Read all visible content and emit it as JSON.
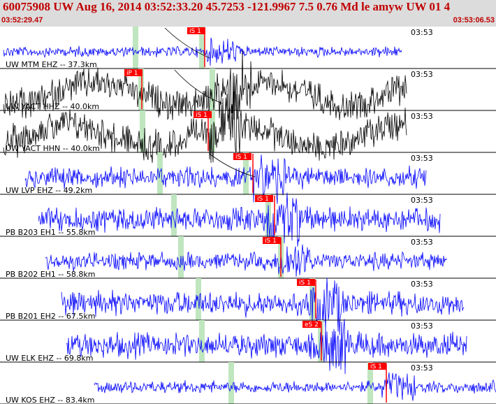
{
  "header": {
    "event_line": "60075908 UW Aug 16, 2014 03:52:33.20   45.7253 -121.9967  7.5 0.76 Md le amyw UW 01   4",
    "start_time": "03:52:29.47",
    "end_time": "03:53:06.53"
  },
  "colors": {
    "header_bg": "#dcdcdc",
    "header_text": "#c00000",
    "trace_blue": "#0000ff",
    "trace_black": "#000000",
    "pick_red": "#ff0000",
    "marker_green": "#bfe6bf"
  },
  "traces": [
    {
      "label": "UW MTM EHZ -- 37.3km",
      "time_label": "03:53",
      "pick": "iS 1",
      "color": "blue"
    },
    {
      "label": "UW YACT HHZ -- 40.0km",
      "time_label": "03:53",
      "pick": "iP 1",
      "color": "black"
    },
    {
      "label": "UW YACT HHN -- 40.0km",
      "time_label": "03:53",
      "pick": "iS 1",
      "color": "black"
    },
    {
      "label": "UW LVP EHZ -- 49.2km",
      "time_label": "03:53",
      "pick": "iS 1",
      "color": "blue"
    },
    {
      "label": "PB B203 EH1 -- 55.8km",
      "time_label": "03:53",
      "pick": "iS 1",
      "color": "blue"
    },
    {
      "label": "PB B202 EH1 -- 58.8km",
      "time_label": "03:53",
      "pick": "iS 1",
      "color": "blue"
    },
    {
      "label": "PB B201 EH2 -- 67.5km",
      "time_label": "03:53",
      "pick": "iS 1",
      "color": "blue"
    },
    {
      "label": "UW ELK EHZ -- 69.8km",
      "time_label": "03:53",
      "pick": "eS 2",
      "color": "blue"
    },
    {
      "label": "UW KOS EHZ -- 83.4km",
      "time_label": "03:53",
      "pick": "iS 1",
      "color": "blue"
    }
  ]
}
